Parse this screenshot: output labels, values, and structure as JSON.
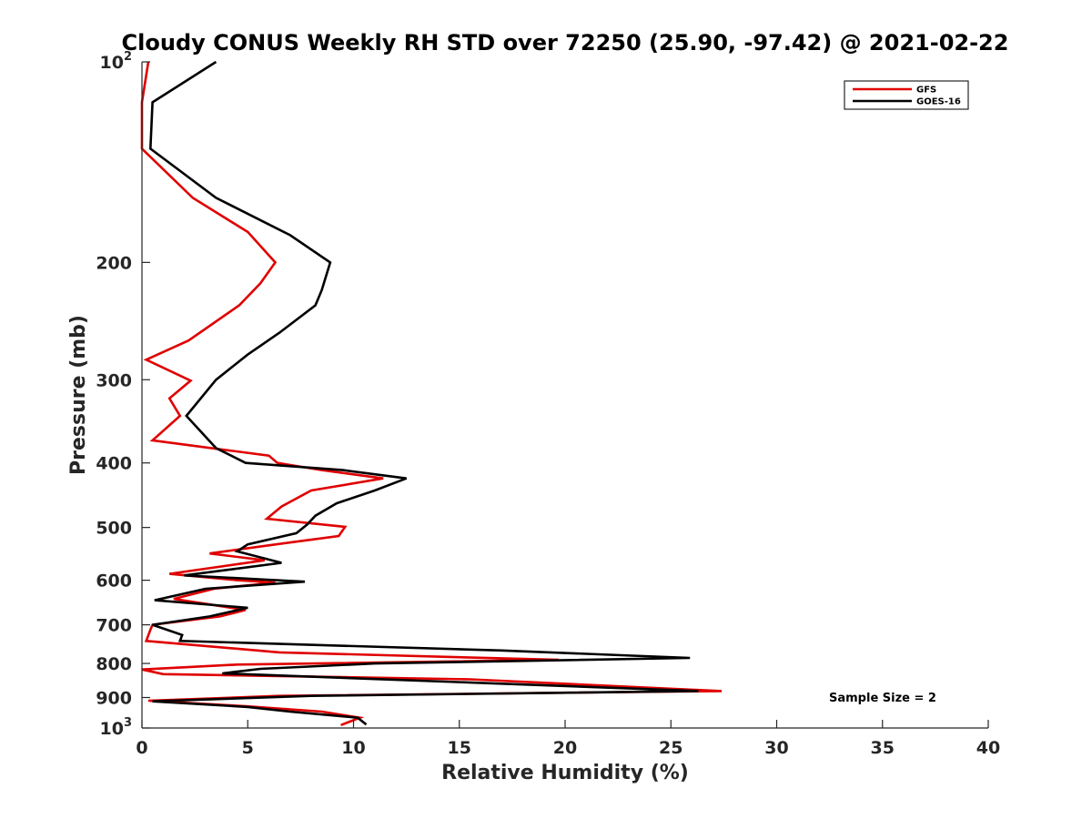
{
  "chart_data": {
    "type": "line",
    "title": "Cloudy CONUS Weekly RH STD over 72250 (25.90, -97.42) @ 2021-02-22",
    "xlabel": "Relative Humidity (%)",
    "ylabel": "Pressure (mb)",
    "xlim": [
      0,
      40
    ],
    "ylim": [
      100,
      1000
    ],
    "yscale": "log",
    "y_reversed": true,
    "grid": false,
    "legend_position": "top-right",
    "x_ticks": [
      "0",
      "5",
      "10",
      "15",
      "20",
      "25",
      "30",
      "35",
      "40"
    ],
    "y_ticks": [
      {
        "value": 100,
        "base": "10",
        "exp": "2"
      },
      {
        "value": 200,
        "label": "200"
      },
      {
        "value": 300,
        "label": "300"
      },
      {
        "value": 400,
        "label": "400"
      },
      {
        "value": 500,
        "label": "500"
      },
      {
        "value": 600,
        "label": "600"
      },
      {
        "value": 700,
        "label": "700"
      },
      {
        "value": 800,
        "label": "800"
      },
      {
        "value": 900,
        "label": "900"
      },
      {
        "value": 1000,
        "base": "10",
        "exp": "3"
      }
    ],
    "annotation": "Sample Size = 2",
    "series": [
      {
        "name": "GFS",
        "color": "#e00000",
        "points": [
          [
            0.3,
            100
          ],
          [
            0.0,
            115
          ],
          [
            0.0,
            135
          ],
          [
            2.4,
            160
          ],
          [
            5.0,
            180
          ],
          [
            6.3,
            200
          ],
          [
            5.6,
            215
          ],
          [
            4.6,
            232
          ],
          [
            2.2,
            262
          ],
          [
            0.2,
            280
          ],
          [
            2.3,
            301
          ],
          [
            1.3,
            320
          ],
          [
            1.8,
            340
          ],
          [
            0.5,
            370
          ],
          [
            6.0,
            390
          ],
          [
            6.4,
            400
          ],
          [
            8.5,
            410
          ],
          [
            11.4,
            422
          ],
          [
            8.0,
            440
          ],
          [
            6.6,
            465
          ],
          [
            5.9,
            485
          ],
          [
            9.6,
            499
          ],
          [
            9.3,
            515
          ],
          [
            6.9,
            527
          ],
          [
            3.2,
            547
          ],
          [
            5.8,
            560
          ],
          [
            1.3,
            587
          ],
          [
            4.5,
            600
          ],
          [
            6.3,
            605
          ],
          [
            3.4,
            618
          ],
          [
            1.5,
            640
          ],
          [
            4.9,
            665
          ],
          [
            3.7,
            680
          ],
          [
            0.5,
            700
          ],
          [
            0.4,
            712
          ],
          [
            0.2,
            740
          ],
          [
            6.5,
            770
          ],
          [
            19.7,
            790
          ],
          [
            4.5,
            803
          ],
          [
            0.0,
            817
          ],
          [
            1.0,
            830
          ],
          [
            15.5,
            845
          ],
          [
            27.4,
            880
          ],
          [
            6.5,
            895
          ],
          [
            0.3,
            910
          ],
          [
            5.0,
            928
          ],
          [
            8.5,
            945
          ],
          [
            10.3,
            965
          ],
          [
            9.4,
            990
          ]
        ]
      },
      {
        "name": "GOES-16",
        "color": "#000000",
        "points": [
          [
            3.5,
            100
          ],
          [
            0.5,
            115
          ],
          [
            0.4,
            135
          ],
          [
            3.5,
            160
          ],
          [
            7.0,
            182
          ],
          [
            8.9,
            200
          ],
          [
            8.5,
            220
          ],
          [
            8.2,
            232
          ],
          [
            6.5,
            255
          ],
          [
            5.0,
            275
          ],
          [
            3.5,
            300
          ],
          [
            2.1,
            340
          ],
          [
            3.5,
            380
          ],
          [
            4.9,
            400
          ],
          [
            9.5,
            410
          ],
          [
            12.5,
            422
          ],
          [
            11.0,
            440
          ],
          [
            9.2,
            460
          ],
          [
            8.2,
            480
          ],
          [
            7.8,
            495
          ],
          [
            7.3,
            510
          ],
          [
            5.0,
            530
          ],
          [
            4.5,
            543
          ],
          [
            6.6,
            565
          ],
          [
            2.0,
            590
          ],
          [
            7.7,
            603
          ],
          [
            3.0,
            618
          ],
          [
            0.6,
            643
          ],
          [
            5.0,
            660
          ],
          [
            3.2,
            680
          ],
          [
            0.5,
            700
          ],
          [
            1.9,
            725
          ],
          [
            1.8,
            740
          ],
          [
            17.0,
            765
          ],
          [
            25.9,
            785
          ],
          [
            11.0,
            800
          ],
          [
            5.6,
            815
          ],
          [
            3.8,
            828
          ],
          [
            17.0,
            858
          ],
          [
            26.3,
            880
          ],
          [
            8.0,
            895
          ],
          [
            0.5,
            912
          ],
          [
            5.0,
            930
          ],
          [
            7.0,
            945
          ],
          [
            10.2,
            965
          ],
          [
            10.6,
            988
          ]
        ]
      }
    ]
  }
}
